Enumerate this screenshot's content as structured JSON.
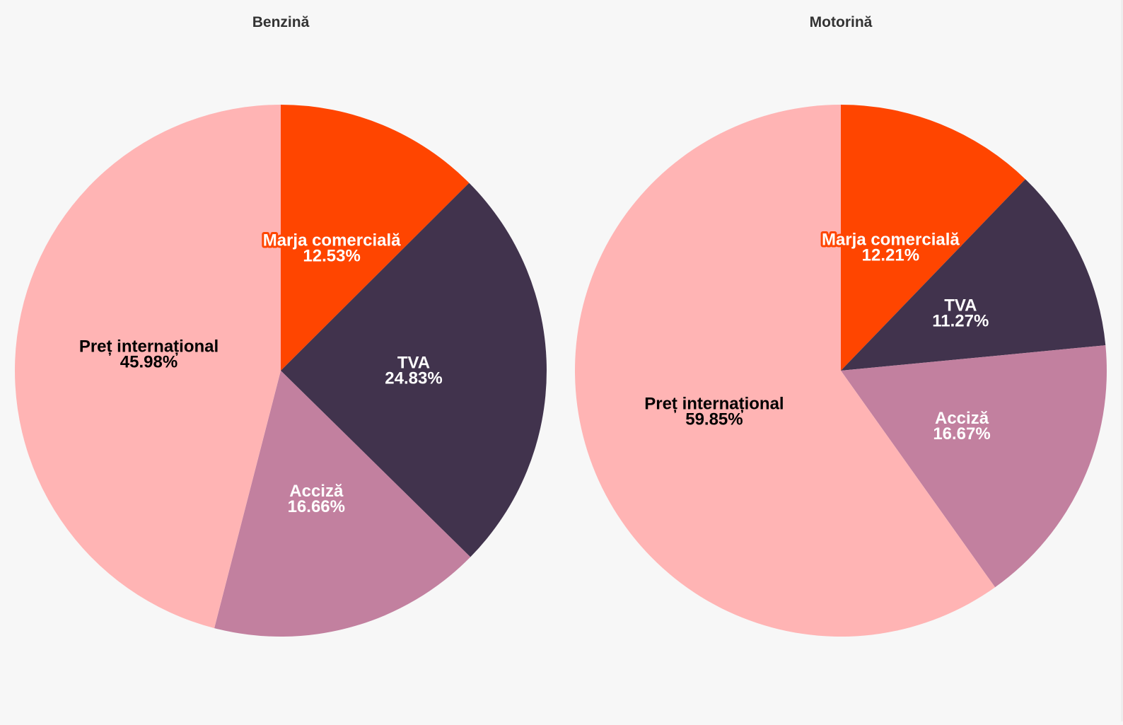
{
  "chart_data": [
    {
      "type": "pie",
      "title": "Benzină",
      "slices": [
        {
          "label": "Marja comercială",
          "value": 12.53,
          "value_text": "12.53%",
          "color": "#ff4500",
          "text_color": "#ffffff",
          "halo_color": "#ff4500"
        },
        {
          "label": "TVA",
          "value": 24.83,
          "value_text": "24.83%",
          "color": "#41334d",
          "text_color": "#ffffff",
          "halo_color": ""
        },
        {
          "label": "Acciză",
          "value": 16.66,
          "value_text": "16.66%",
          "color": "#c2809f",
          "text_color": "#ffffff",
          "halo_color": ""
        },
        {
          "label": "Preț internațional",
          "value": 45.98,
          "value_text": "45.98%",
          "color": "#ffb4b4",
          "text_color": "#000000",
          "halo_color": ""
        }
      ]
    },
    {
      "type": "pie",
      "title": "Motorină",
      "slices": [
        {
          "label": "Marja comercială",
          "value": 12.21,
          "value_text": "12.21%",
          "color": "#ff4500",
          "text_color": "#ffffff",
          "halo_color": "#ff4500"
        },
        {
          "label": "TVA",
          "value": 11.27,
          "value_text": "11.27%",
          "color": "#41334d",
          "text_color": "#ffffff",
          "halo_color": ""
        },
        {
          "label": "Acciză",
          "value": 16.67,
          "value_text": "16.67%",
          "color": "#c2809f",
          "text_color": "#ffffff",
          "halo_color": ""
        },
        {
          "label": "Preț internațional",
          "value": 59.85,
          "value_text": "59.85%",
          "color": "#ffb4b4",
          "text_color": "#000000",
          "halo_color": ""
        }
      ]
    }
  ]
}
